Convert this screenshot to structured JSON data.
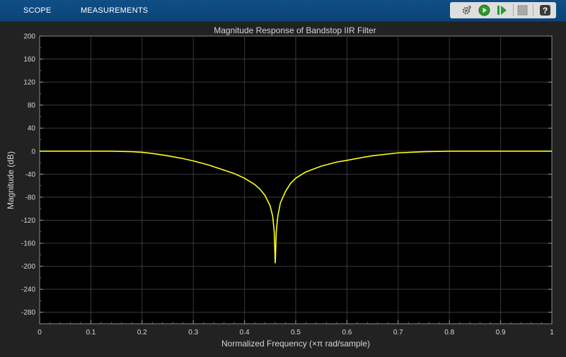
{
  "tabs": {
    "scope": "SCOPE",
    "measurements": "MEASUREMENTS"
  },
  "toolbar": {
    "icons": [
      "settings-gear-icon",
      "run-icon",
      "step-forward-icon",
      "stop-icon",
      "help-icon"
    ],
    "help_label": "?"
  },
  "colors": {
    "toolstrip": "#0d4a80",
    "plot_background": "#000000",
    "figure_background": "#222222",
    "grid": "#3a3a3a",
    "trace": "#ffff1a",
    "run_green": "#2a9a2a"
  },
  "chart_data": {
    "type": "line",
    "title": "Magnitude Response of Bandstop IIR Filter",
    "xlabel": "Normalized Frequency (×π rad/sample)",
    "ylabel": "Magnitude (dB)",
    "xlim": [
      0,
      1
    ],
    "ylim": [
      -300,
      200
    ],
    "grid": true,
    "legend": "none",
    "xticks": [
      0,
      0.1,
      0.2,
      0.3,
      0.4,
      0.5,
      0.6,
      0.7,
      0.8,
      0.9,
      1
    ],
    "xtick_labels": [
      "0",
      "0.1",
      "0.2",
      "0.3",
      "0.4",
      "0.5",
      "0.6",
      "0.7",
      "0.8",
      "0.9",
      "1"
    ],
    "yticks": [
      200,
      160,
      120,
      80,
      40,
      0,
      -40,
      -80,
      -120,
      -160,
      -200,
      -240,
      -280
    ],
    "ytick_labels": [
      "200",
      "160",
      "120",
      "80",
      "40",
      "0",
      "-40",
      "-80",
      "-120",
      "-160",
      "-200",
      "-240",
      "-280"
    ],
    "series": [
      {
        "x": [
          0,
          0.1,
          0.14,
          0.18,
          0.2,
          0.22,
          0.25,
          0.28,
          0.3,
          0.33,
          0.35,
          0.38,
          0.4,
          0.42,
          0.43,
          0.44,
          0.45,
          0.455,
          0.458,
          0.46,
          0.462,
          0.465,
          0.47,
          0.48,
          0.49,
          0.5,
          0.52,
          0.55,
          0.58,
          0.6,
          0.63,
          0.65,
          0.7,
          0.75,
          0.8,
          0.85,
          0.9,
          1
        ],
        "y": [
          0,
          0,
          0,
          -1,
          -2,
          -4,
          -8,
          -13,
          -17,
          -24,
          -30,
          -39,
          -47,
          -58,
          -66,
          -77,
          -95,
          -113,
          -140,
          -195,
          -140,
          -113,
          -90,
          -70,
          -56,
          -47,
          -36,
          -26,
          -19,
          -16,
          -11,
          -8,
          -3,
          -1,
          0,
          0,
          0,
          0
        ]
      }
    ]
  }
}
